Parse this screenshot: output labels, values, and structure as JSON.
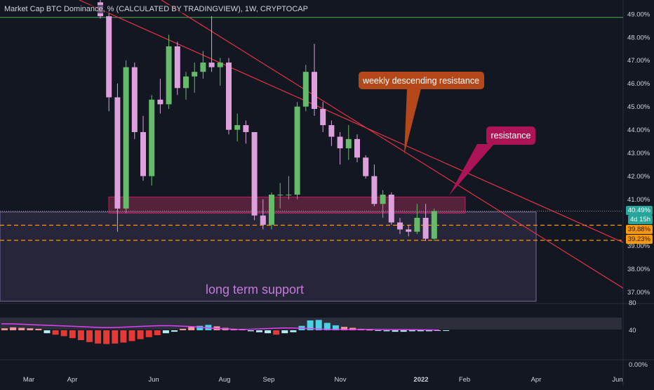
{
  "header": {
    "title": "Market Cap BTC Dominance, % (CALCULATED BY TRADINGVIEW), 1W, CRYPTOCAP"
  },
  "colors": {
    "background": "#131722",
    "bull": "#66bb6a",
    "bear": "#dda0dd",
    "trendline": "#f23645",
    "dashed": "#ff9800",
    "support_zone": "#5d4b7a",
    "resistance_zone": "#a3315a",
    "oscillator_line": "#e040fb"
  },
  "annotations": {
    "weekly_resistance": "weekly descending resistance",
    "resistance": "resistance",
    "support": "long term support"
  },
  "price_labels": {
    "current": "40.49%",
    "countdown": "4d 15h",
    "level1": "39.88%",
    "level2": "39.23%"
  },
  "chart_data": {
    "type": "candlestick",
    "ylabel": "",
    "ylim": [
      36.5,
      49.6
    ],
    "y_ticks": [
      "49.00%",
      "48.00%",
      "47.00%",
      "46.00%",
      "45.00%",
      "44.00%",
      "43.00%",
      "42.00%",
      "41.00%",
      "39.00%",
      "38.00%",
      "37.00%"
    ],
    "x_ticks": [
      "Mar",
      "Apr",
      "Jun",
      "Aug",
      "Sep",
      "Nov",
      "2022",
      "Feb",
      "Apr",
      "Jun"
    ],
    "candles": [
      {
        "o": 49.5,
        "h": 49.8,
        "l": 48.8,
        "c": 48.9
      },
      {
        "o": 48.9,
        "h": 49.2,
        "l": 44.8,
        "c": 45.4
      },
      {
        "o": 45.4,
        "h": 46.0,
        "l": 39.6,
        "c": 40.6
      },
      {
        "o": 40.6,
        "h": 47.0,
        "l": 40.4,
        "c": 46.7
      },
      {
        "o": 46.7,
        "h": 46.9,
        "l": 43.6,
        "c": 43.9
      },
      {
        "o": 43.9,
        "h": 44.6,
        "l": 41.8,
        "c": 42.0
      },
      {
        "o": 42.0,
        "h": 45.5,
        "l": 41.6,
        "c": 45.3
      },
      {
        "o": 45.3,
        "h": 46.2,
        "l": 44.7,
        "c": 45.1
      },
      {
        "o": 45.1,
        "h": 48.1,
        "l": 44.9,
        "c": 47.6
      },
      {
        "o": 47.6,
        "h": 47.8,
        "l": 45.5,
        "c": 45.8
      },
      {
        "o": 45.8,
        "h": 46.5,
        "l": 45.3,
        "c": 46.3
      },
      {
        "o": 46.3,
        "h": 46.9,
        "l": 45.6,
        "c": 46.5
      },
      {
        "o": 46.5,
        "h": 47.4,
        "l": 46.2,
        "c": 46.9
      },
      {
        "o": 46.9,
        "h": 48.9,
        "l": 46.5,
        "c": 46.7
      },
      {
        "o": 46.7,
        "h": 47.1,
        "l": 45.9,
        "c": 46.9
      },
      {
        "o": 46.9,
        "h": 47.1,
        "l": 43.8,
        "c": 44.0
      },
      {
        "o": 44.0,
        "h": 44.7,
        "l": 43.5,
        "c": 44.2
      },
      {
        "o": 44.2,
        "h": 44.4,
        "l": 43.4,
        "c": 43.9
      },
      {
        "o": 43.9,
        "h": 43.9,
        "l": 40.1,
        "c": 40.3
      },
      {
        "o": 40.3,
        "h": 41.0,
        "l": 39.7,
        "c": 39.9
      },
      {
        "o": 39.9,
        "h": 41.3,
        "l": 39.7,
        "c": 41.2
      },
      {
        "o": 41.2,
        "h": 41.7,
        "l": 40.6,
        "c": 41.2
      },
      {
        "o": 41.2,
        "h": 42.0,
        "l": 41.0,
        "c": 41.2
      },
      {
        "o": 41.2,
        "h": 45.2,
        "l": 41.0,
        "c": 45.0
      },
      {
        "o": 45.0,
        "h": 46.8,
        "l": 44.8,
        "c": 46.5
      },
      {
        "o": 46.5,
        "h": 47.7,
        "l": 44.6,
        "c": 44.9
      },
      {
        "o": 44.9,
        "h": 45.2,
        "l": 43.9,
        "c": 44.2
      },
      {
        "o": 44.2,
        "h": 44.4,
        "l": 43.3,
        "c": 43.7
      },
      {
        "o": 43.7,
        "h": 43.9,
        "l": 42.5,
        "c": 43.2
      },
      {
        "o": 43.2,
        "h": 44.2,
        "l": 42.7,
        "c": 43.6
      },
      {
        "o": 43.6,
        "h": 43.8,
        "l": 42.6,
        "c": 42.8
      },
      {
        "o": 42.8,
        "h": 42.9,
        "l": 41.9,
        "c": 42.0
      },
      {
        "o": 42.0,
        "h": 42.5,
        "l": 40.7,
        "c": 40.8
      },
      {
        "o": 40.8,
        "h": 41.4,
        "l": 40.2,
        "c": 41.2
      },
      {
        "o": 41.2,
        "h": 41.3,
        "l": 39.9,
        "c": 40.0
      },
      {
        "o": 40.0,
        "h": 40.2,
        "l": 39.5,
        "c": 39.7
      },
      {
        "o": 39.7,
        "h": 39.9,
        "l": 39.4,
        "c": 39.6
      },
      {
        "o": 39.6,
        "h": 40.8,
        "l": 39.5,
        "c": 40.2
      },
      {
        "o": 40.2,
        "h": 40.8,
        "l": 39.2,
        "c": 39.3
      },
      {
        "o": 39.3,
        "h": 40.6,
        "l": 39.2,
        "c": 40.49
      }
    ],
    "support_zone": [
      36.6,
      40.45
    ],
    "resistance_zone": [
      40.4,
      41.1
    ],
    "dashed_levels": [
      39.88,
      39.23
    ],
    "oscillator": {
      "ticks": [
        "80",
        "40",
        "0.00%"
      ],
      "line": [
        48,
        48,
        47.5,
        47,
        46.5,
        46,
        45.5,
        45,
        44.5,
        44,
        44,
        44.5,
        45,
        45.5,
        46,
        46,
        45.5,
        45,
        44,
        43,
        42.5,
        42,
        42,
        42.5,
        43,
        43.5,
        43.5,
        43,
        42.5,
        42,
        42,
        42,
        42,
        42,
        42,
        41.8,
        41.8,
        41.6,
        41.4,
        41.2
      ],
      "hist": [
        0.04,
        0.06,
        0.05,
        0.04,
        0.03,
        -0.06,
        -0.09,
        -0.12,
        -0.16,
        -0.2,
        -0.24,
        -0.27,
        -0.28,
        -0.27,
        -0.25,
        -0.22,
        -0.18,
        -0.14,
        -0.1,
        -0.06,
        -0.03,
        0.03,
        0.07,
        0.09,
        0.11,
        0.08,
        0.05,
        0.03,
        0.02,
        -0.02,
        -0.04,
        -0.06,
        -0.09,
        -0.06,
        -0.04,
        0.09,
        0.2,
        0.21,
        0.15,
        0.1,
        0.07,
        0.05,
        0.03,
        0.01,
        -0.01,
        -0.02,
        -0.03,
        -0.03,
        -0.02,
        -0.02,
        -0.02,
        -0.01,
        -0.01
      ]
    }
  }
}
